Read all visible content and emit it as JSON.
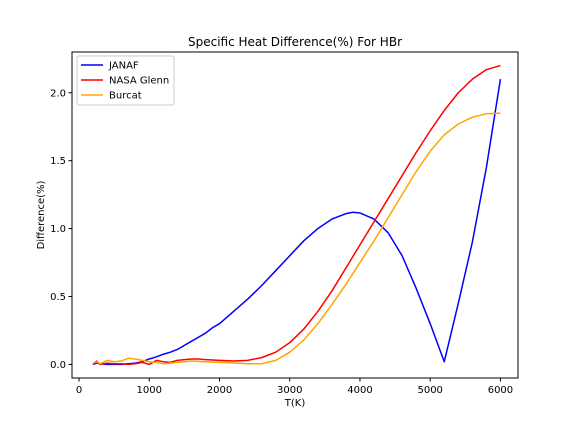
{
  "chart_data": {
    "type": "line",
    "title": "Specific Heat Difference(%) For HBr",
    "xlabel": "T(K)",
    "ylabel": "Difference(%)",
    "xlim": [
      -100,
      6250
    ],
    "ylim": [
      -0.1,
      2.3
    ],
    "xticks": [
      0,
      1000,
      2000,
      3000,
      4000,
      5000,
      6000
    ],
    "yticks": [
      0.0,
      0.5,
      1.0,
      1.5,
      2.0
    ],
    "xtick_labels": [
      "0",
      "1000",
      "2000",
      "3000",
      "4000",
      "5000",
      "6000"
    ],
    "ytick_labels": [
      "0.0",
      "0.5",
      "1.0",
      "1.5",
      "2.0"
    ],
    "grid": false,
    "legend_position": "top-left",
    "series": [
      {
        "name": "JANAF",
        "color": "#0000ff",
        "x": [
          200,
          250,
          300,
          400,
          500,
          600,
          700,
          800,
          900,
          1000,
          1100,
          1200,
          1300,
          1400,
          1500,
          1600,
          1700,
          1800,
          1900,
          2000,
          2200,
          2400,
          2600,
          2800,
          3000,
          3200,
          3400,
          3600,
          3800,
          3900,
          4000,
          4200,
          4400,
          4600,
          4800,
          5000,
          5200,
          5400,
          5600,
          5800,
          6000
        ],
        "y": [
          0.0,
          0.01,
          0.005,
          0.0,
          0.0,
          0.0,
          0.005,
          0.01,
          0.02,
          0.04,
          0.055,
          0.075,
          0.09,
          0.11,
          0.14,
          0.17,
          0.2,
          0.23,
          0.27,
          0.3,
          0.39,
          0.48,
          0.58,
          0.69,
          0.8,
          0.91,
          1.0,
          1.07,
          1.11,
          1.12,
          1.115,
          1.07,
          0.97,
          0.8,
          0.56,
          0.3,
          0.02,
          0.45,
          0.9,
          1.45,
          2.1
        ]
      },
      {
        "name": "NASA Glenn",
        "color": "#ff0000",
        "x": [
          200,
          250,
          300,
          400,
          500,
          600,
          700,
          800,
          900,
          1000,
          1100,
          1200,
          1300,
          1400,
          1500,
          1600,
          1700,
          1800,
          2000,
          2200,
          2400,
          2600,
          2800,
          3000,
          3200,
          3400,
          3600,
          3800,
          4000,
          4200,
          4400,
          4600,
          4800,
          5000,
          5200,
          5400,
          5600,
          5800,
          6000
        ],
        "y": [
          0.0,
          0.025,
          0.0,
          0.01,
          0.005,
          0.005,
          0.0,
          0.005,
          0.015,
          0.0,
          0.03,
          0.02,
          0.015,
          0.03,
          0.035,
          0.04,
          0.04,
          0.035,
          0.03,
          0.025,
          0.03,
          0.05,
          0.09,
          0.16,
          0.26,
          0.39,
          0.54,
          0.71,
          0.88,
          1.05,
          1.22,
          1.39,
          1.56,
          1.72,
          1.87,
          2.0,
          2.1,
          2.17,
          2.2
        ]
      },
      {
        "name": "Burcat",
        "color": "#ffa500",
        "x": [
          200,
          250,
          300,
          400,
          500,
          600,
          700,
          800,
          900,
          1000,
          1100,
          1200,
          1300,
          1400,
          1500,
          1600,
          1800,
          2000,
          2200,
          2400,
          2600,
          2800,
          3000,
          3200,
          3400,
          3600,
          3800,
          4000,
          4200,
          4400,
          4600,
          4800,
          5000,
          5200,
          5400,
          5600,
          5800,
          6000
        ],
        "y": [
          0.01,
          0.02,
          0.005,
          0.03,
          0.02,
          0.025,
          0.045,
          0.04,
          0.03,
          0.02,
          0.015,
          0.005,
          0.01,
          0.015,
          0.02,
          0.025,
          0.02,
          0.015,
          0.01,
          0.005,
          0.005,
          0.03,
          0.09,
          0.18,
          0.3,
          0.44,
          0.59,
          0.75,
          0.91,
          1.08,
          1.25,
          1.42,
          1.57,
          1.69,
          1.77,
          1.82,
          1.845,
          1.85
        ]
      }
    ]
  }
}
